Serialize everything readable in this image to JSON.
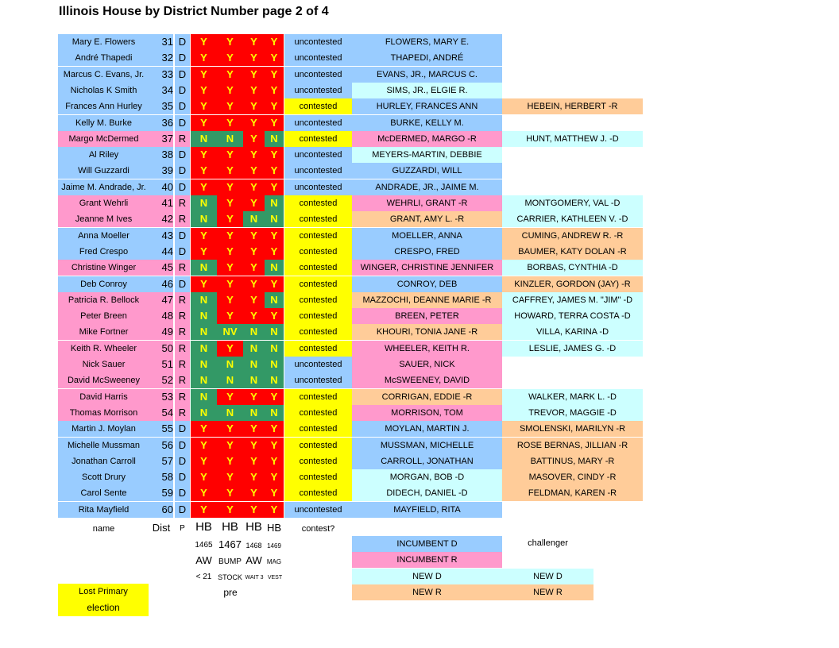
{
  "title": "Illinois House by District Number page 2 of 4",
  "colors": {
    "Y": "#ff0000",
    "N": "#339966",
    "NV": "#339966",
    "incumbent_D": "#99ccff",
    "incumbent_R": "#ff99cc",
    "new_D": "#ccffff",
    "new_R": "#ffcc99",
    "lost_primary": "#ffff00",
    "vote_text": "#ffff00"
  },
  "rows": [
    {
      "name": "Mary E. Flowers",
      "dist": "31",
      "party": "D",
      "votes": [
        "Y",
        "Y",
        "Y",
        "Y"
      ],
      "contest": "uncontested",
      "incumbent": "FLOWERS, MARY E.",
      "incumbent_color": "blue",
      "challenger": "",
      "challenger_color": ""
    },
    {
      "name": "André Thapedi",
      "dist": "32",
      "party": "D",
      "votes": [
        "Y",
        "Y",
        "Y",
        "Y"
      ],
      "contest": "uncontested",
      "incumbent": "THAPEDI, ANDRÉ",
      "incumbent_color": "blue",
      "challenger": "",
      "challenger_color": ""
    },
    {
      "name": "Marcus C. Evans, Jr.",
      "dist": "33",
      "party": "D",
      "votes": [
        "Y",
        "Y",
        "Y",
        "Y"
      ],
      "contest": "uncontested",
      "incumbent": "EVANS, JR., MARCUS C.",
      "incumbent_color": "blue",
      "challenger": "",
      "challenger_color": ""
    },
    {
      "name": "Nicholas K Smith",
      "dist": "34",
      "party": "D",
      "votes": [
        "Y",
        "Y",
        "Y",
        "Y"
      ],
      "contest": "uncontested",
      "incumbent": "SIMS, JR., ELGIE R.",
      "incumbent_color": "cyan",
      "challenger": "",
      "challenger_color": ""
    },
    {
      "name": "Frances Ann Hurley",
      "dist": "35",
      "party": "D",
      "votes": [
        "Y",
        "Y",
        "Y",
        "Y"
      ],
      "contest": "contested",
      "incumbent": "HURLEY, FRANCES ANN",
      "incumbent_color": "blue",
      "challenger": "HEBEIN, HERBERT  -R",
      "challenger_color": "orange"
    },
    {
      "name": "Kelly M. Burke",
      "dist": "36",
      "party": "D",
      "votes": [
        "Y",
        "Y",
        "Y",
        "Y"
      ],
      "contest": "uncontested",
      "incumbent": "BURKE, KELLY M.",
      "incumbent_color": "blue",
      "challenger": "",
      "challenger_color": ""
    },
    {
      "name": "Margo McDermed",
      "dist": "37",
      "party": "R",
      "votes": [
        "N",
        "N",
        "Y",
        "N"
      ],
      "contest": "contested",
      "incumbent": "McDERMED, MARGO  -R",
      "incumbent_color": "pink",
      "challenger": "HUNT, MATTHEW J.  -D",
      "challenger_color": "cyan"
    },
    {
      "name": "Al Riley",
      "dist": "38",
      "party": "D",
      "votes": [
        "Y",
        "Y",
        "Y",
        "Y"
      ],
      "contest": "uncontested",
      "incumbent": "MEYERS-MARTIN, DEBBIE",
      "incumbent_color": "cyan",
      "challenger": "",
      "challenger_color": ""
    },
    {
      "name": "Will Guzzardi",
      "dist": "39",
      "party": "D",
      "votes": [
        "Y",
        "Y",
        "Y",
        "Y"
      ],
      "contest": "uncontested",
      "incumbent": "GUZZARDI, WILL",
      "incumbent_color": "blue",
      "challenger": "",
      "challenger_color": ""
    },
    {
      "name": "Jaime M. Andrade, Jr.",
      "dist": "40",
      "party": "D",
      "votes": [
        "Y",
        "Y",
        "Y",
        "Y"
      ],
      "contest": "uncontested",
      "incumbent": "ANDRADE, JR., JAIME M.",
      "incumbent_color": "blue",
      "challenger": "",
      "challenger_color": ""
    },
    {
      "name": "Grant Wehrli",
      "dist": "41",
      "party": "R",
      "votes": [
        "N",
        "Y",
        "Y",
        "N"
      ],
      "contest": "contested",
      "incumbent": "WEHRLI, GRANT -R",
      "incumbent_color": "pink",
      "challenger": "MONTGOMERY, VAL -D",
      "challenger_color": "cyan"
    },
    {
      "name": "Jeanne M Ives",
      "dist": "42",
      "party": "R",
      "votes": [
        "N",
        "Y",
        "N",
        "N"
      ],
      "contest": "contested",
      "incumbent": "GRANT, AMY L. -R",
      "incumbent_color": "orange",
      "challenger": "CARRIER, KATHLEEN V. -D",
      "challenger_color": "cyan"
    },
    {
      "name": "Anna Moeller",
      "dist": "43",
      "party": "D",
      "votes": [
        "Y",
        "Y",
        "Y",
        "Y"
      ],
      "contest": "contested",
      "incumbent": "MOELLER, ANNA",
      "incumbent_color": "blue",
      "challenger": "CUMING, ANDREW R. -R",
      "challenger_color": "orange"
    },
    {
      "name": "Fred Crespo",
      "dist": "44",
      "party": "D",
      "votes": [
        "Y",
        "Y",
        "Y",
        "Y"
      ],
      "contest": "contested",
      "incumbent": "CRESPO, FRED",
      "incumbent_color": "blue",
      "challenger": "BAUMER, KATY DOLAN -R",
      "challenger_color": "orange"
    },
    {
      "name": "Christine Winger",
      "dist": "45",
      "party": "R",
      "votes": [
        "N",
        "Y",
        "Y",
        "N"
      ],
      "contest": "contested",
      "incumbent": "WINGER, CHRISTINE JENNIFER",
      "incumbent_color": "pink",
      "challenger": "BORBAS, CYNTHIA -D",
      "challenger_color": "cyan"
    },
    {
      "name": "Deb Conroy",
      "dist": "46",
      "party": "D",
      "votes": [
        "Y",
        "Y",
        "Y",
        "Y"
      ],
      "contest": "contested",
      "incumbent": "CONROY, DEB",
      "incumbent_color": "blue",
      "challenger": "KINZLER, GORDON (JAY) -R",
      "challenger_color": "orange"
    },
    {
      "name": "Patricia R. Bellock",
      "dist": "47",
      "party": "R",
      "votes": [
        "N",
        "Y",
        "Y",
        "N"
      ],
      "contest": "contested",
      "incumbent": "MAZZOCHI, DEANNE MARIE -R",
      "incumbent_color": "orange",
      "challenger": "CAFFREY, JAMES M. \"JIM\" -D",
      "challenger_color": "cyan"
    },
    {
      "name": "Peter Breen",
      "dist": "48",
      "party": "R",
      "votes": [
        "N",
        "Y",
        "Y",
        "Y"
      ],
      "contest": "contested",
      "incumbent": "BREEN, PETER",
      "incumbent_color": "pink",
      "challenger": "HOWARD, TERRA COSTA -D",
      "challenger_color": "cyan"
    },
    {
      "name": "Mike Fortner",
      "dist": "49",
      "party": "R",
      "votes": [
        "N",
        "NV",
        "N",
        "N"
      ],
      "contest": "contested",
      "incumbent": "KHOURI, TONIA JANE -R",
      "incumbent_color": "orange",
      "challenger": "VILLA, KARINA -D",
      "challenger_color": "cyan"
    },
    {
      "name": "Keith R. Wheeler",
      "dist": "50",
      "party": "R",
      "votes": [
        "N",
        "Y",
        "N",
        "N"
      ],
      "contest": "contested",
      "incumbent": "WHEELER, KEITH R.",
      "incumbent_color": "pink",
      "challenger": "LESLIE, JAMES G. -D",
      "challenger_color": "cyan"
    },
    {
      "name": "Nick Sauer",
      "dist": "51",
      "party": "R",
      "votes": [
        "N",
        "N",
        "N",
        "N"
      ],
      "contest": "uncontested",
      "incumbent": "SAUER, NICK",
      "incumbent_color": "pink",
      "challenger": "",
      "challenger_color": ""
    },
    {
      "name": "David McSweeney",
      "dist": "52",
      "party": "R",
      "votes": [
        "N",
        "N",
        "N",
        "N"
      ],
      "contest": "uncontested",
      "incumbent": "McSWEENEY, DAVID",
      "incumbent_color": "pink",
      "challenger": "",
      "challenger_color": ""
    },
    {
      "name": "David Harris",
      "dist": "53",
      "party": "R",
      "votes": [
        "N",
        "Y",
        "Y",
        "Y"
      ],
      "contest": "contested",
      "incumbent": "CORRIGAN, EDDIE -R",
      "incumbent_color": "orange",
      "challenger": "WALKER, MARK L. -D",
      "challenger_color": "cyan"
    },
    {
      "name": "Thomas Morrison",
      "dist": "54",
      "party": "R",
      "votes": [
        "N",
        "N",
        "N",
        "N"
      ],
      "contest": "contested",
      "incumbent": "MORRISON, TOM",
      "incumbent_color": "pink",
      "challenger": "TREVOR, MAGGIE -D",
      "challenger_color": "cyan"
    },
    {
      "name": "Martin J. Moylan",
      "dist": "55",
      "party": "D",
      "votes": [
        "Y",
        "Y",
        "Y",
        "Y"
      ],
      "contest": "contested",
      "incumbent": "MOYLAN, MARTIN J.",
      "incumbent_color": "blue",
      "challenger": "SMOLENSKI, MARILYN  -R",
      "challenger_color": "orange"
    },
    {
      "name": "Michelle Mussman",
      "dist": "56",
      "party": "D",
      "votes": [
        "Y",
        "Y",
        "Y",
        "Y"
      ],
      "contest": "contested",
      "incumbent": "MUSSMAN, MICHELLE",
      "incumbent_color": "blue",
      "challenger": "ROSE BERNAS, JILLIAN -R",
      "challenger_color": "orange"
    },
    {
      "name": "Jonathan Carroll",
      "dist": "57",
      "party": "D",
      "votes": [
        "Y",
        "Y",
        "Y",
        "Y"
      ],
      "contest": "contested",
      "incumbent": "CARROLL, JONATHAN",
      "incumbent_color": "blue",
      "challenger": "BATTINUS, MARY -R",
      "challenger_color": "orange"
    },
    {
      "name": "Scott Drury",
      "dist": "58",
      "party": "D",
      "votes": [
        "Y",
        "Y",
        "Y",
        "Y"
      ],
      "contest": "contested",
      "incumbent": "MORGAN, BOB -D",
      "incumbent_color": "cyan",
      "challenger": "MASOVER, CINDY -R",
      "challenger_color": "orange"
    },
    {
      "name": "Carol Sente",
      "dist": "59",
      "party": "D",
      "votes": [
        "Y",
        "Y",
        "Y",
        "Y"
      ],
      "contest": "contested",
      "incumbent": "DIDECH, DANIEL -D",
      "incumbent_color": "cyan",
      "challenger": "FELDMAN, KAREN -R",
      "challenger_color": "orange"
    },
    {
      "name": "Rita Mayfield",
      "dist": "60",
      "party": "D",
      "votes": [
        "Y",
        "Y",
        "Y",
        "Y"
      ],
      "contest": "uncontested",
      "incumbent": "MAYFIELD, RITA",
      "incumbent_color": "blue",
      "challenger": "",
      "challenger_color": ""
    }
  ],
  "footer": {
    "name": "name",
    "dist": "Dist",
    "party": "P",
    "hb": [
      "HB",
      "HB",
      "HB",
      "HB"
    ],
    "bill_numbers": [
      "1465",
      "1467",
      "1468",
      "1469"
    ],
    "desc1": [
      "AW",
      "BUMP",
      "AW",
      "MAG"
    ],
    "desc2": [
      "< 21",
      "STOCK",
      "WAIT 3",
      "VEST"
    ],
    "pre": "pre",
    "contest": "contest?",
    "challenger": "challenger"
  },
  "legend": {
    "incumbent_d": "INCUMBENT D",
    "incumbent_r": "INCUMBENT R",
    "new_d_left": "NEW  D",
    "new_d_right": "NEW D",
    "new_r_left": "NEW  R",
    "new_r_right": "NEW R",
    "lost_primary_line1": "Lost Primary",
    "lost_primary_line2": "election"
  }
}
